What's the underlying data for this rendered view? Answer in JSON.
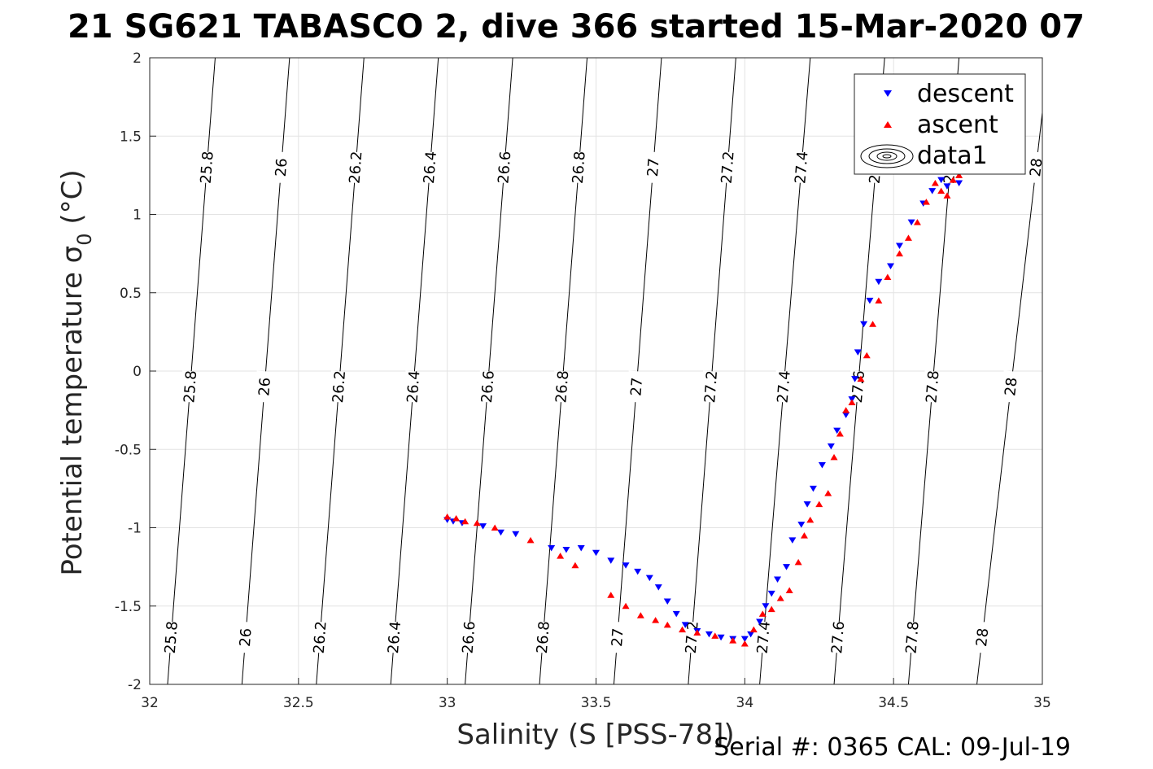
{
  "title": "21 SG621 TABASCO 2, dive 366 started 15-Mar-2020 07",
  "footer": "Serial #: 0365  CAL: 09-Jul-19",
  "chart_data": {
    "type": "scatter",
    "xlabel": "Salinity (S [PSS-78])",
    "ylabel": "Potential temperature σ",
    "ylabel_sub": "0",
    "ylabel_unit": " (°C)",
    "xlim": [
      32,
      35
    ],
    "ylim": [
      -2,
      2
    ],
    "xticks": [
      "32",
      "32.5",
      "33",
      "33.5",
      "34",
      "34.5",
      "35"
    ],
    "yticks": [
      "-2",
      "-1.5",
      "-1",
      "-0.5",
      "0",
      "0.5",
      "1",
      "1.5",
      "2"
    ],
    "grid": true,
    "legend_position": "top-right",
    "contours": [
      {
        "level": "25.8",
        "points": [
          [
            32.06,
            -2
          ],
          [
            32.22,
            2
          ]
        ]
      },
      {
        "level": "26",
        "points": [
          [
            32.31,
            -2
          ],
          [
            32.47,
            2
          ]
        ]
      },
      {
        "level": "26.2",
        "points": [
          [
            32.56,
            -2
          ],
          [
            32.72,
            2
          ]
        ]
      },
      {
        "level": "26.4",
        "points": [
          [
            32.81,
            -2
          ],
          [
            32.97,
            2
          ]
        ]
      },
      {
        "level": "26.6",
        "points": [
          [
            33.06,
            -2
          ],
          [
            33.22,
            2
          ]
        ]
      },
      {
        "level": "26.8",
        "points": [
          [
            33.31,
            -2
          ],
          [
            33.47,
            2
          ]
        ]
      },
      {
        "level": "27",
        "points": [
          [
            33.56,
            -2
          ],
          [
            33.72,
            2
          ]
        ]
      },
      {
        "level": "27.2",
        "points": [
          [
            33.81,
            -2
          ],
          [
            33.97,
            2
          ]
        ]
      },
      {
        "level": "27.4",
        "points": [
          [
            34.05,
            -2
          ],
          [
            34.22,
            2
          ]
        ]
      },
      {
        "level": "27.6",
        "points": [
          [
            34.3,
            -2
          ],
          [
            34.47,
            2
          ]
        ]
      },
      {
        "level": "27.8",
        "points": [
          [
            34.55,
            -2
          ],
          [
            34.72,
            2
          ]
        ]
      },
      {
        "level": "28",
        "points": [
          [
            34.78,
            -2
          ],
          [
            35,
            1.65
          ]
        ]
      }
    ],
    "series": [
      {
        "name": "descent",
        "marker": "triangle-down",
        "color": "#0000ff",
        "points": [
          [
            33.0,
            -0.95
          ],
          [
            33.02,
            -0.96
          ],
          [
            33.05,
            -0.97
          ],
          [
            33.12,
            -0.99
          ],
          [
            33.18,
            -1.03
          ],
          [
            33.23,
            -1.04
          ],
          [
            33.35,
            -1.13
          ],
          [
            33.4,
            -1.14
          ],
          [
            33.45,
            -1.13
          ],
          [
            33.5,
            -1.16
          ],
          [
            33.55,
            -1.21
          ],
          [
            33.6,
            -1.24
          ],
          [
            33.64,
            -1.28
          ],
          [
            33.68,
            -1.32
          ],
          [
            33.71,
            -1.38
          ],
          [
            33.74,
            -1.47
          ],
          [
            33.77,
            -1.55
          ],
          [
            33.8,
            -1.62
          ],
          [
            33.84,
            -1.66
          ],
          [
            33.88,
            -1.68
          ],
          [
            33.92,
            -1.7
          ],
          [
            33.96,
            -1.71
          ],
          [
            34.0,
            -1.71
          ],
          [
            34.02,
            -1.68
          ],
          [
            34.05,
            -1.6
          ],
          [
            34.07,
            -1.5
          ],
          [
            34.09,
            -1.42
          ],
          [
            34.11,
            -1.33
          ],
          [
            34.14,
            -1.25
          ],
          [
            34.16,
            -1.08
          ],
          [
            34.19,
            -0.98
          ],
          [
            34.21,
            -0.85
          ],
          [
            34.23,
            -0.75
          ],
          [
            34.26,
            -0.6
          ],
          [
            34.29,
            -0.48
          ],
          [
            34.31,
            -0.38
          ],
          [
            34.34,
            -0.28
          ],
          [
            34.36,
            -0.18
          ],
          [
            34.37,
            -0.05
          ],
          [
            34.38,
            0.12
          ],
          [
            34.4,
            0.3
          ],
          [
            34.42,
            0.45
          ],
          [
            34.45,
            0.57
          ],
          [
            34.49,
            0.67
          ],
          [
            34.52,
            0.8
          ],
          [
            34.56,
            0.95
          ],
          [
            34.6,
            1.07
          ],
          [
            34.63,
            1.15
          ],
          [
            34.66,
            1.22
          ],
          [
            34.68,
            1.18
          ],
          [
            34.7,
            1.28
          ],
          [
            34.72,
            1.2
          ]
        ]
      },
      {
        "name": "ascent",
        "marker": "triangle-up",
        "color": "#ff0000",
        "points": [
          [
            33.0,
            -0.93
          ],
          [
            33.03,
            -0.94
          ],
          [
            33.06,
            -0.96
          ],
          [
            33.1,
            -0.97
          ],
          [
            33.16,
            -1.0
          ],
          [
            33.28,
            -1.08
          ],
          [
            33.38,
            -1.18
          ],
          [
            33.43,
            -1.24
          ],
          [
            33.55,
            -1.43
          ],
          [
            33.6,
            -1.5
          ],
          [
            33.65,
            -1.56
          ],
          [
            33.7,
            -1.59
          ],
          [
            33.74,
            -1.62
          ],
          [
            33.79,
            -1.65
          ],
          [
            33.84,
            -1.67
          ],
          [
            33.9,
            -1.69
          ],
          [
            33.96,
            -1.72
          ],
          [
            34.0,
            -1.74
          ],
          [
            34.03,
            -1.65
          ],
          [
            34.06,
            -1.55
          ],
          [
            34.09,
            -1.52
          ],
          [
            34.12,
            -1.45
          ],
          [
            34.15,
            -1.4
          ],
          [
            34.18,
            -1.22
          ],
          [
            34.2,
            -1.05
          ],
          [
            34.22,
            -0.95
          ],
          [
            34.25,
            -0.85
          ],
          [
            34.28,
            -0.78
          ],
          [
            34.3,
            -0.55
          ],
          [
            34.32,
            -0.4
          ],
          [
            34.34,
            -0.25
          ],
          [
            34.36,
            -0.2
          ],
          [
            34.39,
            -0.05
          ],
          [
            34.41,
            0.1
          ],
          [
            34.43,
            0.3
          ],
          [
            34.45,
            0.45
          ],
          [
            34.48,
            0.6
          ],
          [
            34.52,
            0.75
          ],
          [
            34.55,
            0.85
          ],
          [
            34.58,
            0.95
          ],
          [
            34.61,
            1.08
          ],
          [
            34.64,
            1.2
          ],
          [
            34.66,
            1.15
          ],
          [
            34.68,
            1.12
          ],
          [
            34.7,
            1.22
          ],
          [
            34.72,
            1.25
          ]
        ]
      }
    ],
    "legend": [
      "descent",
      "ascent",
      "data1"
    ]
  }
}
